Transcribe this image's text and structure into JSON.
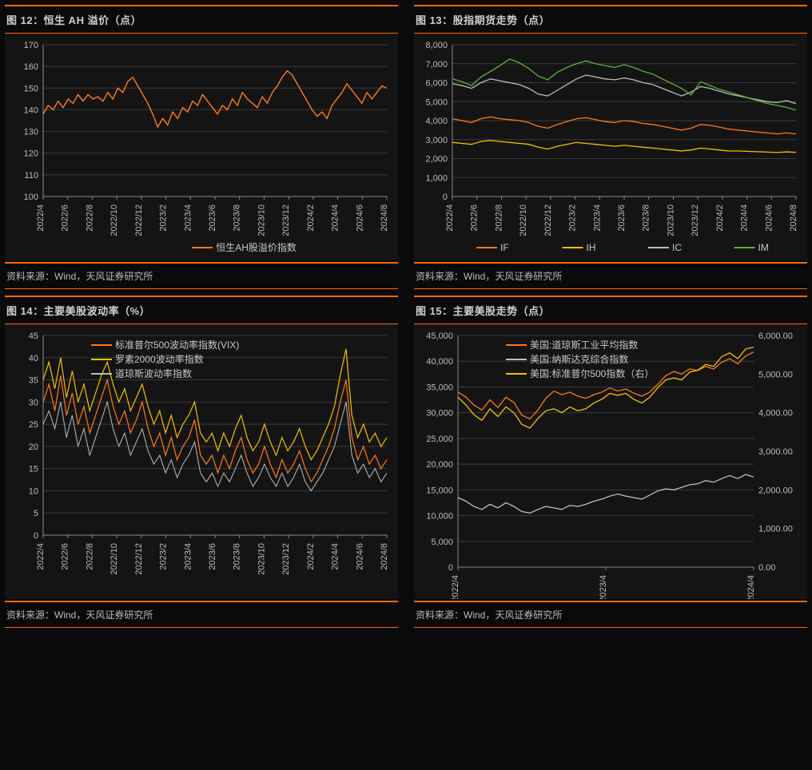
{
  "colors": {
    "orange": "#ff7a1a",
    "yellow": "#f2c200",
    "gray": "#bdbdbd",
    "green": "#5fb23a",
    "bg": "#141414",
    "grid": "#3a3a3a",
    "text": "#c9c9c9"
  },
  "source_text": "资料来源：Wind，天风证券研究所",
  "chart12": {
    "title": "图 12：恒生 AH 溢价（点）",
    "type": "line",
    "legend": [
      "恒生AH股溢价指数"
    ],
    "legend_colors": [
      "#ff7a1a"
    ],
    "ylim": [
      100,
      170
    ],
    "ytick_step": 10,
    "x_labels": [
      "2022/4",
      "2022/6",
      "2022/8",
      "2022/10",
      "2022/12",
      "2023/2",
      "2023/4",
      "2023/6",
      "2023/8",
      "2023/10",
      "2023/12",
      "2024/2",
      "2024/4",
      "2024/6",
      "2024/8"
    ],
    "series": [
      {
        "color": "#ff7a1a",
        "width": 1.4,
        "data": [
          138,
          142,
          140,
          144,
          141,
          145,
          143,
          147,
          144,
          147,
          145,
          146,
          144,
          148,
          145,
          150,
          148,
          153,
          155,
          151,
          147,
          143,
          138,
          132,
          136,
          133,
          139,
          136,
          141,
          139,
          144,
          142,
          147,
          144,
          141,
          138,
          142,
          140,
          145,
          142,
          148,
          145,
          143,
          141,
          146,
          143,
          148,
          151,
          155,
          158,
          156,
          152,
          148,
          144,
          140,
          137,
          139,
          136,
          142,
          145,
          148,
          152,
          149,
          146,
          143,
          148,
          145,
          148,
          151,
          150
        ]
      }
    ]
  },
  "chart13": {
    "title": "图 13：股指期货走势（点）",
    "type": "line",
    "legend": [
      "IF",
      "IH",
      "IC",
      "IM"
    ],
    "legend_colors": [
      "#ff7a1a",
      "#f2c200",
      "#bdbdbd",
      "#5fb23a"
    ],
    "ylim": [
      0,
      8000
    ],
    "ytick_step": 1000,
    "x_labels": [
      "2022/4",
      "2022/6",
      "2022/8",
      "2022/10",
      "2022/12",
      "2023/2",
      "2023/4",
      "2023/6",
      "2023/8",
      "2023/10",
      "2023/12",
      "2024/2",
      "2024/4",
      "2024/6",
      "2024/8"
    ],
    "series": [
      {
        "color": "#ff7a1a",
        "width": 1.3,
        "data": [
          4100,
          4000,
          3900,
          4100,
          4200,
          4100,
          4050,
          4000,
          3900,
          3700,
          3600,
          3800,
          3950,
          4100,
          4150,
          4050,
          3950,
          3900,
          4000,
          3950,
          3850,
          3800,
          3700,
          3600,
          3500,
          3600,
          3800,
          3750,
          3650,
          3550,
          3500,
          3450,
          3400,
          3350,
          3300,
          3350,
          3300
        ]
      },
      {
        "color": "#f2c200",
        "width": 1.3,
        "data": [
          2850,
          2800,
          2750,
          2900,
          2950,
          2900,
          2850,
          2800,
          2750,
          2600,
          2500,
          2650,
          2750,
          2850,
          2800,
          2750,
          2700,
          2650,
          2700,
          2650,
          2600,
          2550,
          2500,
          2450,
          2400,
          2450,
          2550,
          2500,
          2450,
          2400,
          2400,
          2380,
          2360,
          2340,
          2320,
          2350,
          2330
        ]
      },
      {
        "color": "#bdbdbd",
        "width": 1.3,
        "data": [
          5950,
          5850,
          5700,
          6000,
          6200,
          6100,
          6000,
          5900,
          5700,
          5400,
          5300,
          5600,
          5900,
          6200,
          6400,
          6300,
          6200,
          6150,
          6250,
          6150,
          6000,
          5900,
          5700,
          5500,
          5300,
          5500,
          5800,
          5700,
          5550,
          5400,
          5300,
          5200,
          5100,
          5000,
          4950,
          5050,
          4900
        ]
      },
      {
        "color": "#5fb23a",
        "width": 1.3,
        "data": [
          6200,
          6050,
          5850,
          6300,
          6600,
          6900,
          7250,
          7050,
          6750,
          6350,
          6150,
          6550,
          6800,
          7000,
          7150,
          7000,
          6900,
          6800,
          6950,
          6800,
          6600,
          6450,
          6200,
          5950,
          5700,
          5350,
          6050,
          5850,
          5650,
          5500,
          5350,
          5200,
          5050,
          4900,
          4800,
          4700,
          4550
        ]
      }
    ]
  },
  "chart14": {
    "title": "图 14：主要美股波动率（%）",
    "type": "line",
    "legend": [
      "标准普尔500波动率指数(VIX)",
      "罗素2000波动率指数",
      "道琼斯波动率指数"
    ],
    "legend_colors": [
      "#ff7a1a",
      "#f2c200",
      "#bdbdbd"
    ],
    "ylim": [
      0,
      45
    ],
    "ytick_step": 5,
    "x_labels": [
      "2022/4",
      "2022/6",
      "2022/8",
      "2022/10",
      "2022/12",
      "2023/2",
      "2023/4",
      "2023/6",
      "2023/8",
      "2023/10",
      "2023/12",
      "2024/2",
      "2024/4",
      "2024/6",
      "2024/8"
    ],
    "series": [
      {
        "color": "#bdbdbd",
        "width": 1.0,
        "data": [
          25,
          28,
          24,
          30,
          22,
          27,
          20,
          24,
          18,
          22,
          26,
          30,
          24,
          20,
          23,
          18,
          21,
          24,
          19,
          16,
          18,
          14,
          17,
          13,
          16,
          18,
          21,
          14,
          12,
          14,
          11,
          14,
          12,
          15,
          18,
          14,
          11,
          13,
          16,
          13,
          11,
          14,
          11,
          13,
          16,
          12,
          10,
          12,
          14,
          17,
          20,
          25,
          30,
          18,
          14,
          16,
          13,
          15,
          12,
          14
        ]
      },
      {
        "color": "#ff7a1a",
        "width": 1.2,
        "data": [
          30,
          34,
          28,
          36,
          27,
          32,
          25,
          29,
          23,
          27,
          31,
          35,
          29,
          25,
          28,
          23,
          26,
          30,
          24,
          20,
          23,
          18,
          22,
          17,
          20,
          22,
          26,
          18,
          16,
          18,
          14,
          18,
          15,
          19,
          22,
          17,
          14,
          16,
          20,
          16,
          13,
          17,
          14,
          16,
          19,
          15,
          12,
          14,
          17,
          20,
          24,
          30,
          35,
          22,
          17,
          20,
          16,
          18,
          15,
          17
        ]
      },
      {
        "color": "#f2c200",
        "width": 1.2,
        "data": [
          35,
          39,
          33,
          40,
          31,
          37,
          30,
          34,
          28,
          32,
          36,
          39,
          34,
          30,
          33,
          28,
          31,
          34,
          29,
          25,
          28,
          23,
          27,
          22,
          25,
          27,
          30,
          23,
          21,
          23,
          19,
          23,
          20,
          24,
          27,
          22,
          19,
          21,
          25,
          21,
          18,
          22,
          19,
          21,
          24,
          20,
          17,
          19,
          22,
          25,
          29,
          36,
          42,
          27,
          22,
          25,
          21,
          23,
          20,
          22
        ]
      }
    ]
  },
  "chart15": {
    "title": "图 15：主要美股走势（点）",
    "type": "line_dual",
    "legend": [
      "美国:道琼斯工业平均指数",
      "美国:纳斯达克综合指数",
      "美国:标准普尔500指数（右）"
    ],
    "legend_colors": [
      "#ff7a1a",
      "#bdbdbd",
      "#f2c200"
    ],
    "ylim_left": [
      0,
      45000
    ],
    "ytick_left_step": 5000,
    "ylim_right": [
      0,
      6000
    ],
    "ytick_right_step": 1000,
    "right_decimals": 2,
    "x_labels": [
      "2022/4",
      "2023/4",
      "2024/4"
    ],
    "series_left": [
      {
        "color": "#ff7a1a",
        "width": 1.3,
        "data": [
          34000,
          33000,
          31500,
          30500,
          32500,
          31000,
          33000,
          32000,
          29500,
          28800,
          30500,
          32800,
          34200,
          33500,
          34000,
          33200,
          32800,
          33500,
          34000,
          34800,
          34200,
          34600,
          33800,
          33200,
          34000,
          35500,
          37200,
          38000,
          37500,
          38500,
          38200,
          39000,
          38500,
          39800,
          40500,
          39500,
          41000,
          41800
        ]
      },
      {
        "color": "#bdbdbd",
        "width": 1.3,
        "data": [
          13500,
          12800,
          11800,
          11200,
          12200,
          11500,
          12500,
          11800,
          10800,
          10500,
          11200,
          11800,
          11500,
          11200,
          12000,
          11800,
          12200,
          12800,
          13200,
          13800,
          14200,
          13800,
          13500,
          13200,
          14000,
          14800,
          15200,
          15000,
          15500,
          16000,
          16200,
          16800,
          16500,
          17200,
          17800,
          17200,
          18000,
          17500
        ]
      }
    ],
    "series_right": [
      {
        "color": "#f2c200",
        "width": 1.3,
        "data": [
          4400,
          4200,
          3950,
          3800,
          4100,
          3900,
          4150,
          4000,
          3700,
          3600,
          3850,
          4050,
          4100,
          4000,
          4150,
          4050,
          4100,
          4250,
          4350,
          4500,
          4450,
          4500,
          4350,
          4250,
          4400,
          4650,
          4850,
          4900,
          4850,
          5050,
          5100,
          5250,
          5200,
          5450,
          5550,
          5400,
          5650,
          5700
        ]
      }
    ]
  }
}
